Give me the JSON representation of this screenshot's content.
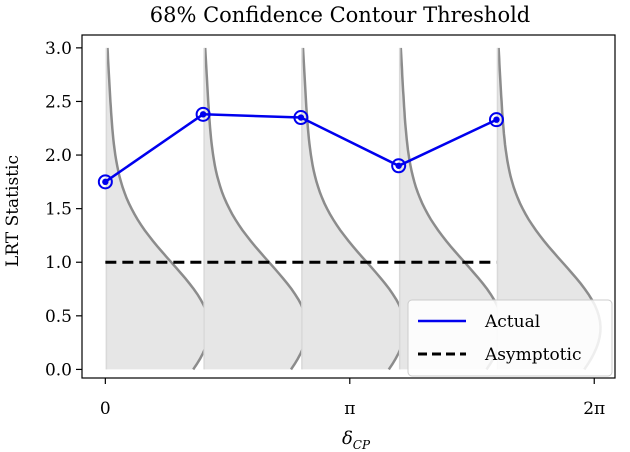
{
  "chart_data": {
    "type": "line",
    "title": "68% Confidence Contour Threshold",
    "xlabel": "δ",
    "xlabel_sub": "CP",
    "ylabel": "LRT Statistic",
    "xlim": [
      -0.3,
      6.55
    ],
    "ylim": [
      -0.08,
      3.12
    ],
    "x_ticks": [
      {
        "value": 0,
        "label": "0"
      },
      {
        "value": 3.1416,
        "label": "π"
      },
      {
        "value": 6.2832,
        "label": "2π"
      }
    ],
    "y_ticks": [
      {
        "value": 0.0,
        "label": "0.0"
      },
      {
        "value": 0.5,
        "label": "0.5"
      },
      {
        "value": 1.0,
        "label": "1.0"
      },
      {
        "value": 1.5,
        "label": "1.5"
      },
      {
        "value": 2.0,
        "label": "2.0"
      },
      {
        "value": 2.5,
        "label": "2.5"
      },
      {
        "value": 3.0,
        "label": "3.0"
      }
    ],
    "grid": false,
    "legend_position": "lower-right",
    "series": [
      {
        "name": "Actual",
        "style": "solid-line-with-circle-markers",
        "color": "#0000ee",
        "x": [
          0,
          1.2566,
          2.5133,
          3.7699,
          5.0265
        ],
        "y": [
          1.75,
          2.38,
          2.35,
          1.9,
          2.33
        ]
      },
      {
        "name": "Asymptotic",
        "style": "dashed",
        "color": "#000000",
        "x": [
          0,
          5.0265
        ],
        "y": [
          1.0,
          1.0
        ]
      }
    ],
    "violins": {
      "color_fill": "#e6e6e6",
      "color_edge": "#8c8c8c",
      "positions": [
        0,
        1.2566,
        2.5133,
        3.7699,
        5.0265
      ],
      "y_range": [
        0,
        3
      ]
    }
  }
}
